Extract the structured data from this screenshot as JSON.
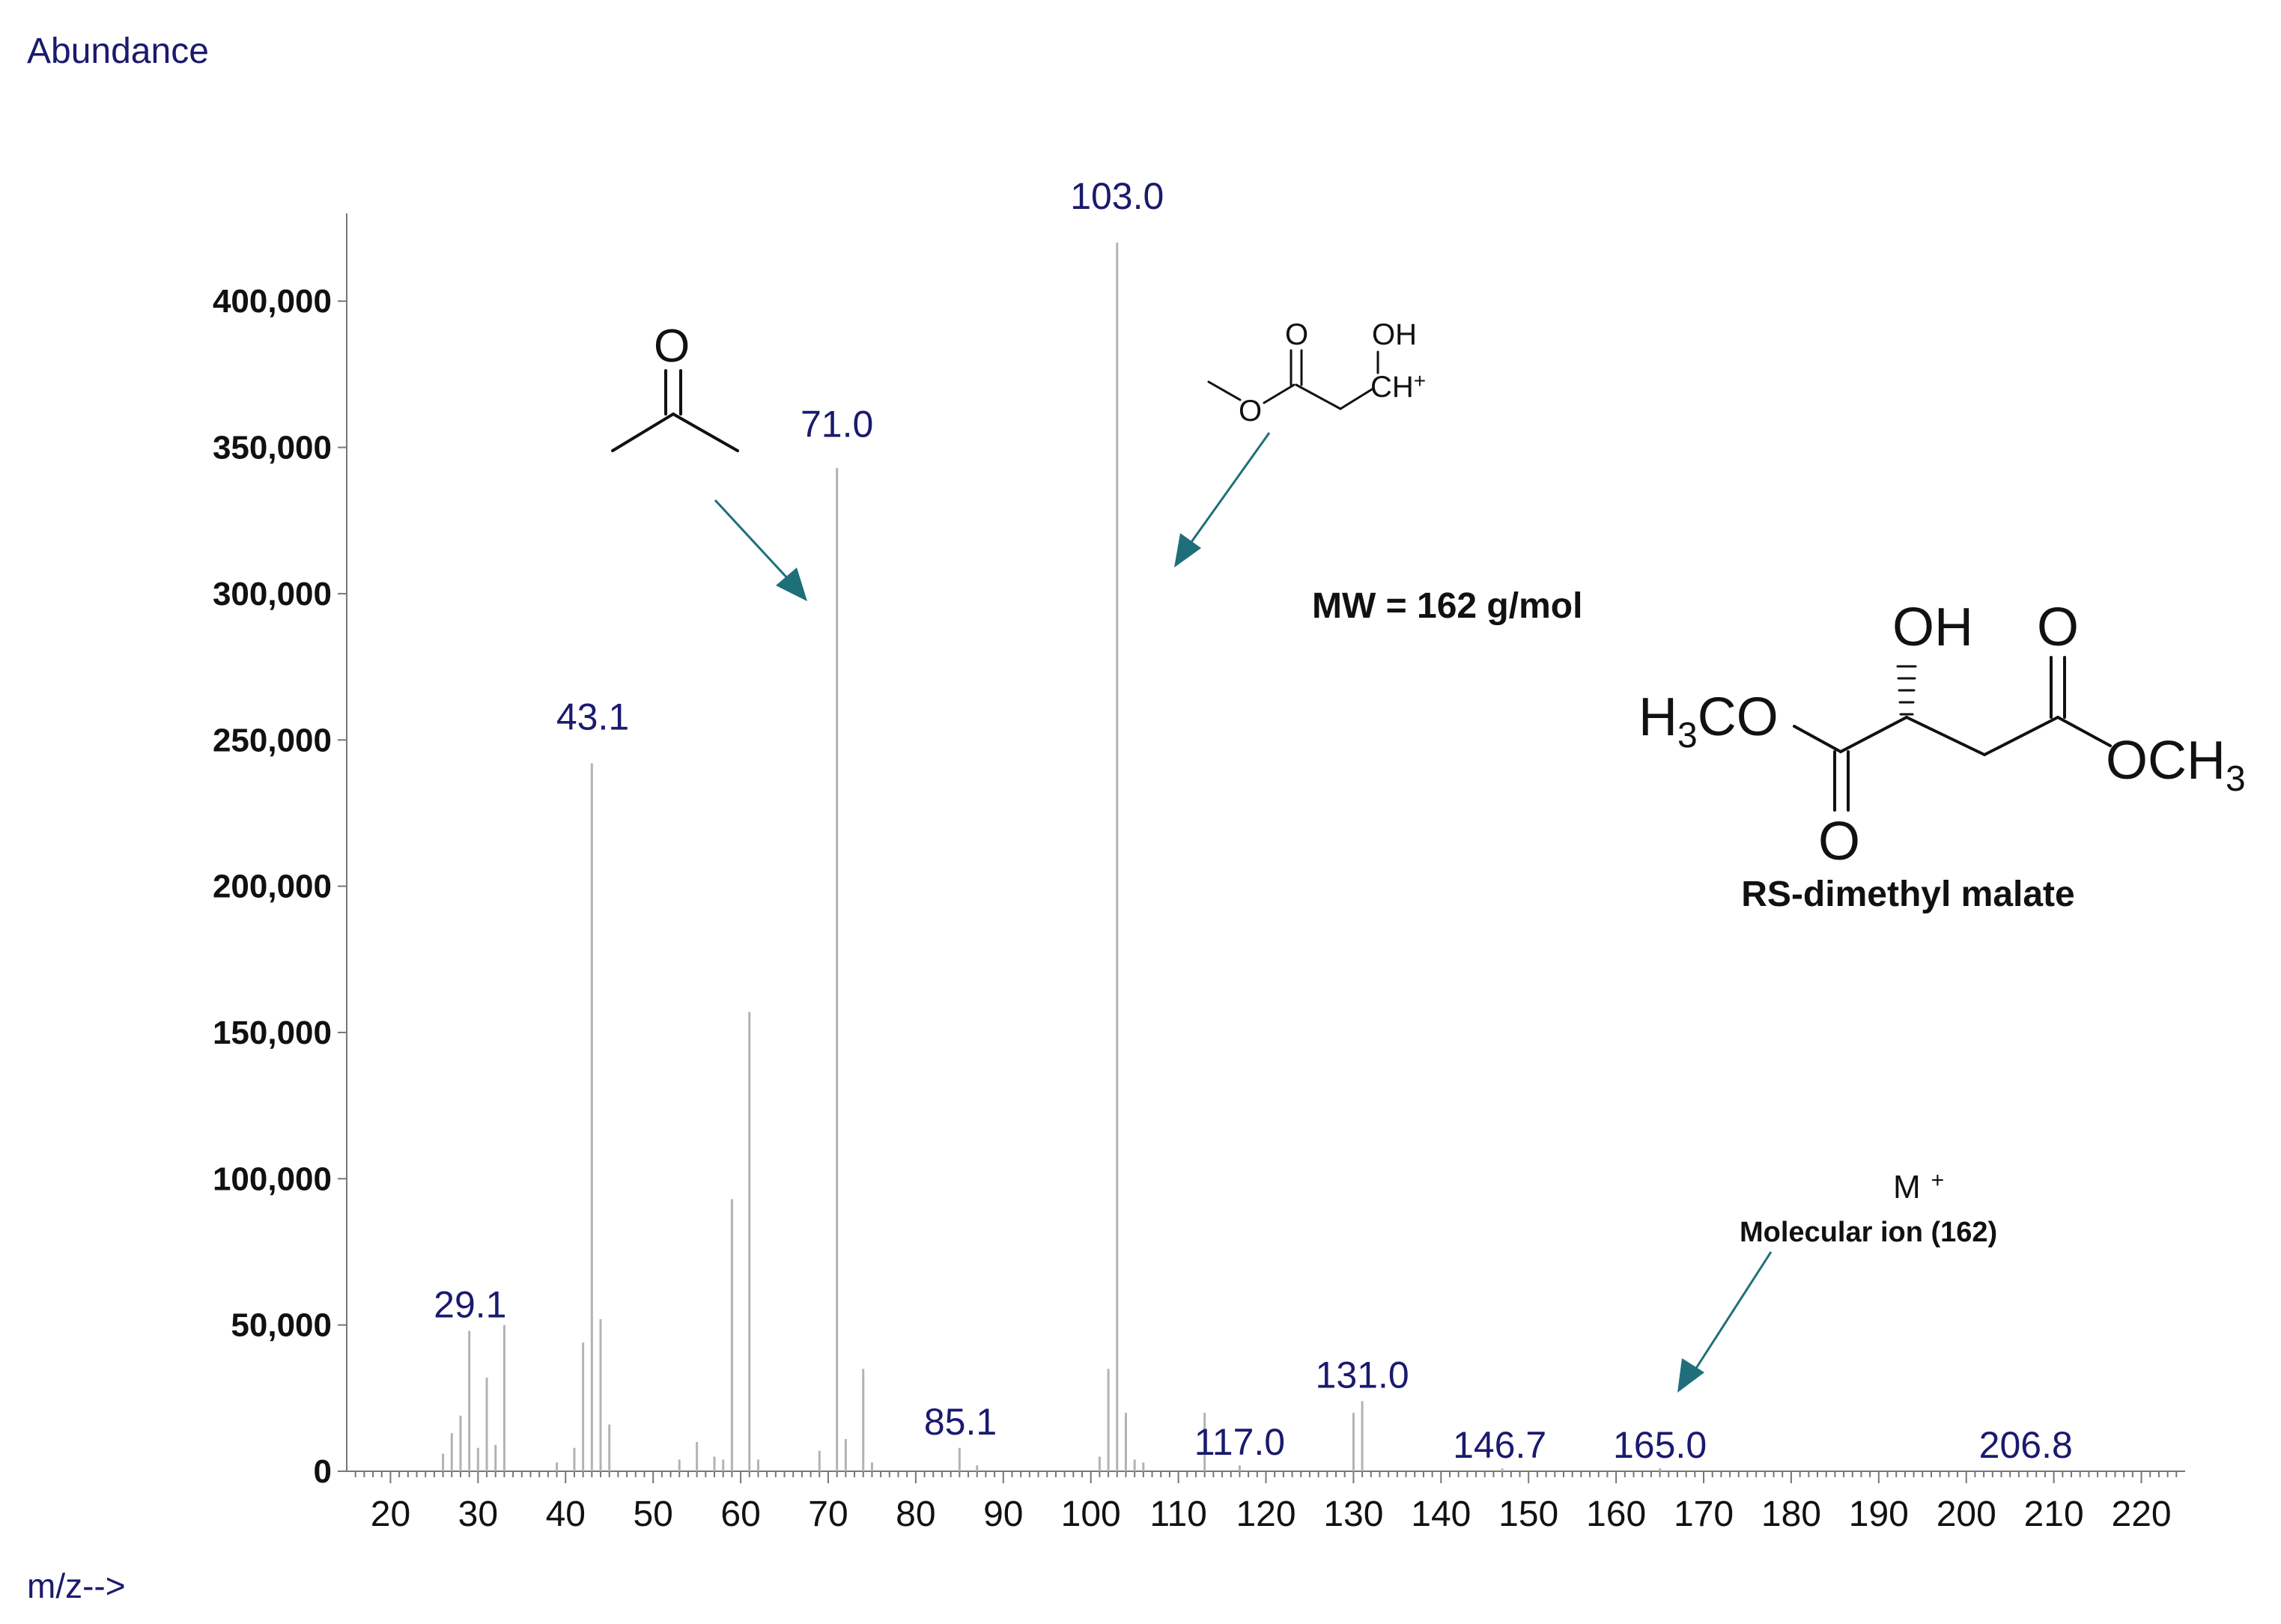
{
  "chart_data": {
    "type": "bar",
    "title": "",
    "ylabel": "Abundance",
    "xlabel": "m/z-->",
    "xlim": [
      15,
      225
    ],
    "ylim": [
      0,
      430000
    ],
    "x_ticks": [
      "20",
      "30",
      "40",
      "50",
      "60",
      "70",
      "80",
      "90",
      "100",
      "110",
      "120",
      "130",
      "140",
      "150",
      "160",
      "170",
      "180",
      "190",
      "200",
      "210",
      "220"
    ],
    "y_ticks": [
      "0",
      "50,000",
      "100,000",
      "150,000",
      "200,000",
      "250,000",
      "300,000",
      "350,000",
      "400,000"
    ],
    "y_tick_values": [
      0,
      50000,
      100000,
      150000,
      200000,
      250000,
      300000,
      350000,
      400000
    ],
    "x_tick_values": [
      20,
      30,
      40,
      50,
      60,
      70,
      80,
      90,
      100,
      110,
      120,
      130,
      140,
      150,
      160,
      170,
      180,
      190,
      200,
      210,
      220
    ],
    "peaks": [
      {
        "mz": 26,
        "abundance": 6000
      },
      {
        "mz": 27,
        "abundance": 13000
      },
      {
        "mz": 28,
        "abundance": 19000
      },
      {
        "mz": 29,
        "abundance": 48000
      },
      {
        "mz": 30,
        "abundance": 8000
      },
      {
        "mz": 31,
        "abundance": 32000
      },
      {
        "mz": 32,
        "abundance": 9000
      },
      {
        "mz": 33,
        "abundance": 50000
      },
      {
        "mz": 39,
        "abundance": 3000
      },
      {
        "mz": 41,
        "abundance": 8000
      },
      {
        "mz": 42,
        "abundance": 44000
      },
      {
        "mz": 43,
        "abundance": 242000
      },
      {
        "mz": 44,
        "abundance": 52000
      },
      {
        "mz": 45,
        "abundance": 16000
      },
      {
        "mz": 53,
        "abundance": 4000
      },
      {
        "mz": 55,
        "abundance": 10000
      },
      {
        "mz": 57,
        "abundance": 5000
      },
      {
        "mz": 58,
        "abundance": 4000
      },
      {
        "mz": 59,
        "abundance": 93000
      },
      {
        "mz": 61,
        "abundance": 157000
      },
      {
        "mz": 62,
        "abundance": 4000
      },
      {
        "mz": 69,
        "abundance": 7000
      },
      {
        "mz": 71,
        "abundance": 343000
      },
      {
        "mz": 72,
        "abundance": 11000
      },
      {
        "mz": 74,
        "abundance": 35000
      },
      {
        "mz": 75,
        "abundance": 3000
      },
      {
        "mz": 85,
        "abundance": 8000
      },
      {
        "mz": 87,
        "abundance": 2000
      },
      {
        "mz": 101,
        "abundance": 5000
      },
      {
        "mz": 102,
        "abundance": 35000
      },
      {
        "mz": 103,
        "abundance": 420000
      },
      {
        "mz": 104,
        "abundance": 20000
      },
      {
        "mz": 105,
        "abundance": 4000
      },
      {
        "mz": 106,
        "abundance": 3000
      },
      {
        "mz": 113,
        "abundance": 20000
      },
      {
        "mz": 117,
        "abundance": 2000
      },
      {
        "mz": 130,
        "abundance": 20000
      },
      {
        "mz": 131,
        "abundance": 24000
      },
      {
        "mz": 147,
        "abundance": 1000
      },
      {
        "mz": 165,
        "abundance": 1000
      }
    ],
    "labeled_peaks": [
      {
        "mz": 29.1,
        "text": "29.1",
        "label_y": 49000
      },
      {
        "mz": 43.1,
        "text": "43.1",
        "label_y": 250000
      },
      {
        "mz": 71.0,
        "text": "71.0",
        "label_y": 350000
      },
      {
        "mz": 85.1,
        "text": "85.1",
        "label_y": 9000
      },
      {
        "mz": 103.0,
        "text": "103.0",
        "label_y": 428000
      },
      {
        "mz": 117.0,
        "text": "117.0",
        "label_y": 2000
      },
      {
        "mz": 131.0,
        "text": "131.0",
        "label_y": 25000
      },
      {
        "mz": 146.7,
        "text": "146.7",
        "label_y": 1000
      },
      {
        "mz": 165.0,
        "text": "165.0",
        "label_y": 1000
      },
      {
        "mz": 206.8,
        "text": "206.8",
        "label_y": 1000
      }
    ]
  },
  "annotations": {
    "mw": "MW = 162 g/mol",
    "compound_name": "RS-dimethyl malate",
    "molecular_ion_symbol": "M",
    "molecular_ion_charge": "+",
    "molecular_ion_text": "Molecular ion (162)"
  },
  "structures": {
    "acetyl": {
      "o": "O"
    },
    "fragment103": {
      "o_top": "O",
      "oh": "OH",
      "o_ester": "O",
      "ch": "CH",
      "plus": "+"
    },
    "malate": {
      "h3co_h": "H",
      "h3co_3": "3",
      "h3co_co": "CO",
      "oh": "OH",
      "o_top_right": "O",
      "o_bottom": "O",
      "och3_och": "OCH",
      "och3_3": "3"
    }
  },
  "colors": {
    "axis_label": "#1a1a6e",
    "peak_label": "#1a1a6e",
    "bar": "#b3b3b3",
    "arrow": "#1f6f7a"
  }
}
